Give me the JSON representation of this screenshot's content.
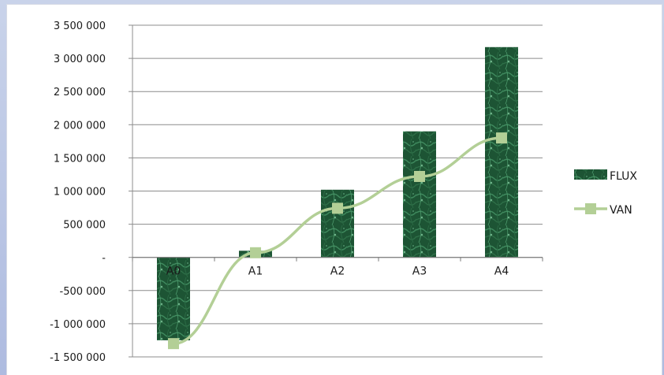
{
  "chart_data": {
    "type": "bar",
    "categories": [
      "A0",
      "A1",
      "A2",
      "A3",
      "A4"
    ],
    "series": [
      {
        "name": "FLUX",
        "type": "bar",
        "values": [
          -1250000,
          100000,
          1020000,
          1900000,
          3170000
        ],
        "color": "#1f5a37"
      },
      {
        "name": "VAN",
        "type": "line",
        "values": [
          -1300000,
          70000,
          740000,
          1220000,
          1800000
        ],
        "color": "#b3cf96"
      }
    ],
    "ylim": [
      -1500000,
      3500000
    ],
    "ytick_values": [
      3500000,
      3000000,
      2500000,
      2000000,
      1500000,
      1000000,
      500000,
      0,
      -500000,
      -1000000,
      -1500000
    ],
    "ytick_labels": [
      "3 500 000",
      "3 000 000",
      "2 500 000",
      "2 000 000",
      "1 500 000",
      "1 000 000",
      "500 000",
      "-",
      "-500 000",
      "-1 000 000",
      "-1 500 000"
    ],
    "grid": true,
    "legend": "right"
  }
}
